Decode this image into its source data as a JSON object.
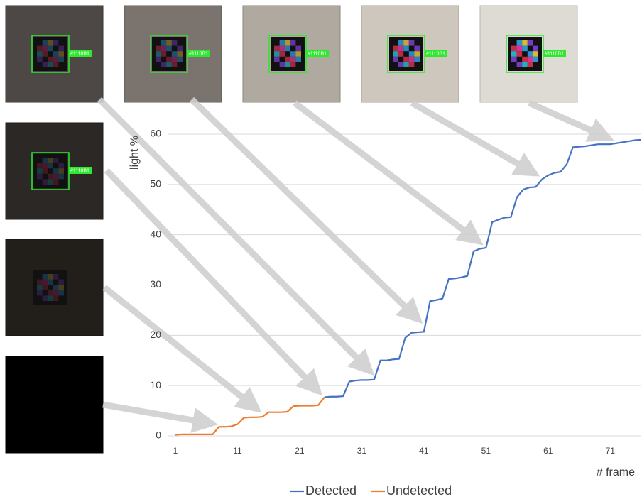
{
  "chart_data": {
    "type": "line",
    "y_label": "light %",
    "x_label": "# frame",
    "x": [
      1,
      2,
      3,
      4,
      5,
      6,
      7,
      8,
      9,
      10,
      11,
      12,
      13,
      14,
      15,
      16,
      17,
      18,
      19,
      20,
      21,
      22,
      23,
      24,
      25,
      26,
      27,
      28,
      29,
      30,
      31,
      32,
      33,
      34,
      35,
      36,
      37,
      38,
      39,
      40,
      41,
      42,
      43,
      44,
      45,
      46,
      47,
      48,
      49,
      50,
      51,
      52,
      53,
      54,
      55,
      56,
      57,
      58,
      59,
      60,
      61,
      62,
      63,
      64,
      65,
      66,
      67,
      68,
      69,
      70,
      71,
      72,
      73,
      74,
      75,
      76
    ],
    "series": [
      {
        "name": "Detected",
        "color": "#4472c4",
        "values": [
          null,
          null,
          null,
          null,
          null,
          null,
          null,
          null,
          null,
          null,
          null,
          null,
          null,
          null,
          null,
          null,
          null,
          null,
          null,
          null,
          null,
          null,
          null,
          null,
          7.7,
          7.8,
          7.8,
          7.9,
          10.8,
          11.0,
          11.1,
          11.1,
          11.2,
          15.0,
          15.0,
          15.2,
          15.3,
          19.5,
          20.5,
          20.6,
          20.7,
          26.8,
          27.0,
          27.3,
          31.2,
          31.3,
          31.5,
          31.8,
          36.7,
          37.2,
          37.4,
          42.5,
          43.0,
          43.4,
          43.5,
          47.5,
          49.0,
          49.4,
          49.5,
          51.0,
          51.8,
          52.3,
          52.5,
          54.0,
          57.4,
          57.5,
          57.6,
          57.8,
          58.0,
          58.0,
          58.0,
          58.2,
          58.4,
          58.6,
          58.8,
          58.9
        ]
      },
      {
        "name": "Undetected",
        "color": "#ed7d31",
        "values": [
          0.2,
          0.3,
          0.3,
          0.3,
          0.3,
          0.3,
          0.3,
          1.8,
          1.8,
          1.9,
          2.3,
          3.6,
          3.7,
          3.7,
          3.8,
          4.7,
          4.7,
          4.7,
          4.8,
          5.9,
          6.0,
          6.0,
          6.0,
          6.1,
          7.7,
          null,
          null,
          null,
          null,
          null,
          null,
          null,
          null,
          null,
          null,
          null,
          null,
          null,
          null,
          null,
          null,
          null,
          null,
          null,
          null,
          null,
          null,
          null,
          null,
          null,
          null,
          null,
          null,
          null,
          null,
          null,
          null,
          null,
          null,
          null,
          null,
          null,
          null,
          null,
          null,
          null,
          null,
          null,
          null,
          null,
          null,
          null,
          null,
          null,
          null,
          null
        ]
      }
    ],
    "xlim": [
      1,
      76
    ],
    "xticks": [
      1,
      11,
      21,
      31,
      41,
      51,
      61,
      71
    ],
    "ylim": [
      0,
      60
    ],
    "yticks": [
      0,
      10,
      20,
      30,
      40,
      50,
      60
    ],
    "grid": true,
    "legend": "bottom"
  },
  "thumbnails": [
    {
      "label": "#1110B1"
    },
    {
      "label": "#1110B1"
    },
    {
      "label": "#1110B1"
    },
    {
      "label": "#1110B1"
    },
    {
      "label": "#1110B1"
    },
    {
      "label": "#1110B1"
    }
  ]
}
